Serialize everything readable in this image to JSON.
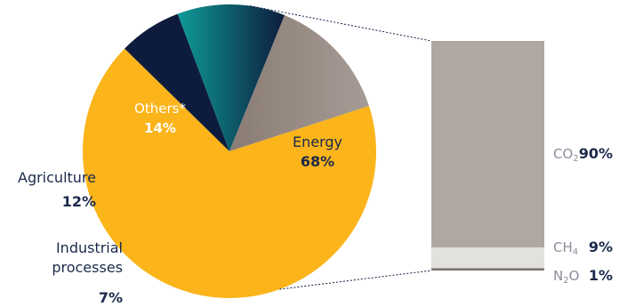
{
  "chart_data": [
    {
      "type": "pie",
      "slices": [
        {
          "label": "Energy",
          "value": 68,
          "value_label": "68%",
          "color": "#FBB41A"
        },
        {
          "label": "Industrial processes",
          "label_lines": [
            "Industrial",
            "processes"
          ],
          "value": 7,
          "value_label": "7%",
          "color": "#0D1C3D"
        },
        {
          "label": "Agriculture",
          "value": 12,
          "value_label": "12%",
          "color_gradient": [
            "#0E9A97",
            "#0D1C3D"
          ]
        },
        {
          "label": "Others*",
          "value": 14,
          "value_label": "14%",
          "color_gradient": [
            "#8A7C74",
            "#A69B95"
          ]
        }
      ]
    },
    {
      "type": "bar",
      "stacked": true,
      "categories": [
        "Energy"
      ],
      "series": [
        {
          "name": "CO2",
          "name_main": "CO",
          "name_sub": "2",
          "value": 90,
          "value_label": "90%",
          "color": "#AFA7A2"
        },
        {
          "name": "CH4",
          "name_main": "CH",
          "name_sub": "4",
          "value": 9,
          "value_label": "9%",
          "color": "#E3E1DD"
        },
        {
          "name": "N2O",
          "name_main": "N",
          "name_sub": "2",
          "name_tail": "O",
          "value": 1,
          "value_label": "1%",
          "color": "#7D716D"
        }
      ]
    }
  ]
}
